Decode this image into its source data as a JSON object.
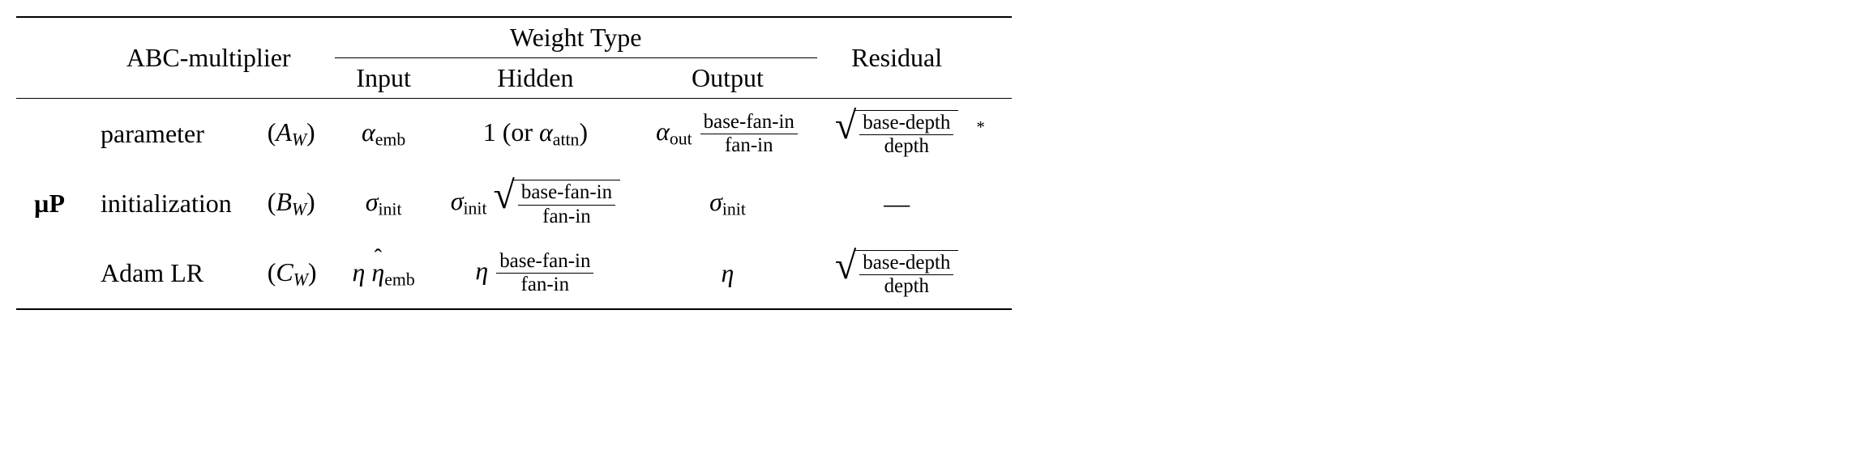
{
  "headers": {
    "abc": "ABC-multiplier",
    "weightType": "Weight Type",
    "residual": "Residual",
    "input": "Input",
    "hidden": "Hidden",
    "output": "Output"
  },
  "rowGroupLabel": "µP",
  "rows": {
    "parameter": {
      "label": "parameter",
      "sym": "A",
      "symSub": "W",
      "input": {
        "sym": "α",
        "sub": "emb"
      },
      "hidden": {
        "prefix": "1 (or ",
        "sym": "α",
        "sub": "attn",
        "suffix": ")"
      },
      "output": {
        "sym": "α",
        "sub": "out",
        "fracNum": "base-fan-in",
        "fracDen": "fan-in"
      },
      "residual": {
        "fracNum": "base-depth",
        "fracDen": "depth",
        "note": "*"
      }
    },
    "init": {
      "label": "initialization",
      "sym": "B",
      "symSub": "W",
      "input": {
        "sym": "σ",
        "sub": "init"
      },
      "hidden": {
        "sym": "σ",
        "sub": "init",
        "fracNum": "base-fan-in",
        "fracDen": "fan-in"
      },
      "output": {
        "sym": "σ",
        "sub": "init"
      },
      "residual": {
        "text": "—"
      }
    },
    "adam": {
      "label": "Adam LR",
      "sym": "C",
      "symSub": "W",
      "input": {
        "sym1": "η",
        "sym2": "η",
        "sub": "emb"
      },
      "hidden": {
        "sym": "η",
        "fracNum": "base-fan-in",
        "fracDen": "fan-in"
      },
      "output": {
        "sym": "η"
      },
      "residual": {
        "fracNum": "base-depth",
        "fracDen": "depth"
      }
    }
  },
  "style": {
    "fontSizePx": 32,
    "ruleColor": "#000000",
    "background": "#ffffff",
    "textColor": "#000000"
  }
}
